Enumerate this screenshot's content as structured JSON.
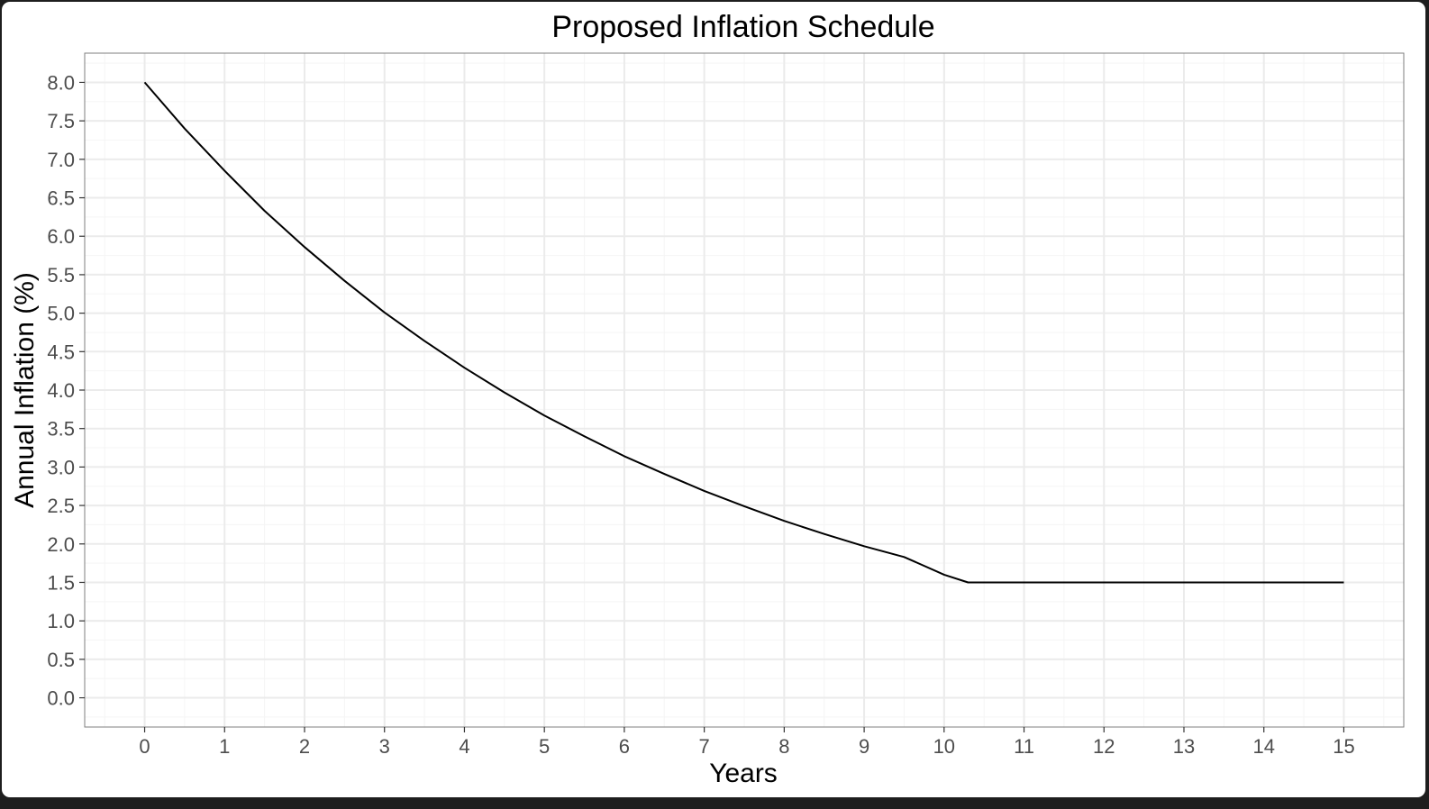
{
  "chart_data": {
    "type": "line",
    "title": "Proposed Inflation Schedule",
    "xlabel": "Years",
    "ylabel": "Annual Inflation (%)",
    "xlim": [
      -0.75,
      15.75
    ],
    "ylim": [
      -0.38,
      8.38
    ],
    "xticks": [
      0,
      1,
      2,
      3,
      4,
      5,
      6,
      7,
      8,
      9,
      10,
      11,
      12,
      13,
      14,
      15
    ],
    "xtick_labels": [
      "0",
      "1",
      "2",
      "3",
      "4",
      "5",
      "6",
      "7",
      "8",
      "9",
      "10",
      "11",
      "12",
      "13",
      "14",
      "15"
    ],
    "yticks": [
      0,
      0.5,
      1,
      1.5,
      2,
      2.5,
      3,
      3.5,
      4,
      4.5,
      5,
      5.5,
      6,
      6.5,
      7,
      7.5,
      8
    ],
    "ytick_labels": [
      "0.0",
      "0.5",
      "1.0",
      "1.5",
      "2.0",
      "2.5",
      "3.0",
      "3.5",
      "4.0",
      "4.5",
      "5.0",
      "5.5",
      "6.0",
      "6.5",
      "7.0",
      "7.5",
      "8.0"
    ],
    "grid": true,
    "legend": "none",
    "colors": {
      "line": "#000000",
      "grid_major": "#ebebeb",
      "grid_minor": "#f5f5f5",
      "panel_border": "#7f7f7f",
      "tick_label": "#4d4d4d"
    },
    "series": [
      {
        "x": [
          0,
          0.5,
          1,
          1.5,
          2,
          2.5,
          3,
          3.5,
          4,
          4.5,
          5,
          5.5,
          6,
          6.5,
          7,
          7.5,
          8,
          8.5,
          9,
          9.5,
          10,
          10.3,
          11,
          12,
          13,
          14,
          15
        ],
        "y": [
          8.0,
          7.4,
          6.85,
          6.33,
          5.86,
          5.42,
          5.01,
          4.64,
          4.29,
          3.97,
          3.67,
          3.4,
          3.14,
          2.91,
          2.69,
          2.49,
          2.3,
          2.13,
          1.97,
          1.83,
          1.6,
          1.5,
          1.5,
          1.5,
          1.5,
          1.5,
          1.5
        ]
      }
    ]
  }
}
